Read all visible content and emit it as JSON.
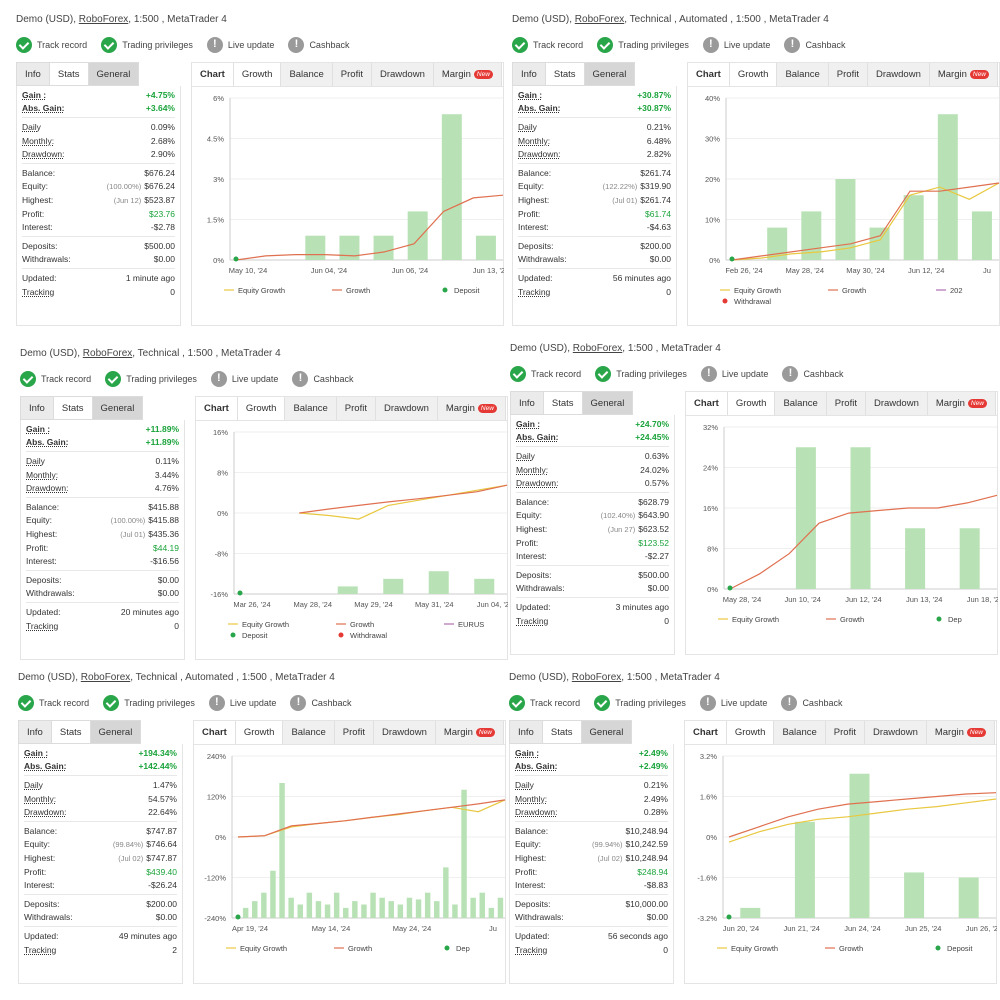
{
  "common": {
    "badges": [
      "Track record",
      "Trading privileges",
      "Live update",
      "Cashback"
    ],
    "info_tabs": [
      "Info",
      "Stats",
      "General"
    ],
    "chart_tabs": [
      "Chart",
      "Growth",
      "Balance",
      "Profit",
      "Drawdown",
      "Margin"
    ],
    "new_label": "New"
  },
  "panels": [
    {
      "title": {
        "prefix": "Demo (USD), ",
        "broker": "RoboForex",
        "suffix": ", 1:500 , MetaTrader 4"
      },
      "stats": [
        {
          "k": "Gain :",
          "v": "+4.75%"
        },
        {
          "k": "Abs. Gain:",
          "v": "+3.64%"
        },
        {
          "k": "Daily",
          "v": "0.09%"
        },
        {
          "k": "Monthly:",
          "v": "2.68%"
        },
        {
          "k": "Drawdown:",
          "v": "2.90%"
        },
        {
          "k": "Balance:",
          "v": "$676.24"
        },
        {
          "k": "Equity:",
          "sub": "(100.00%)",
          "v": "$676.24"
        },
        {
          "k": "Highest:",
          "sub": "(Jun 12)",
          "v": "$523.87"
        },
        {
          "k": "Profit:",
          "v": "$23.76"
        },
        {
          "k": "Interest:",
          "v": "-$2.78"
        },
        {
          "k": "Deposits:",
          "v": "$500.00"
        },
        {
          "k": "Withdrawals:",
          "v": "$0.00"
        },
        {
          "k": "Updated:",
          "v": "1 minute ago"
        },
        {
          "k": "Tracking",
          "v": "0"
        }
      ],
      "chart_data": {
        "type": "bar",
        "y_ticks": [
          "6%",
          "4.5%",
          "3%",
          "1.5%",
          "0%"
        ],
        "ylim": [
          0,
          6
        ],
        "x_ticks": [
          "May 10, '24",
          "Jun 04, '24",
          "Jun 06, '24",
          "Jun 13, '24"
        ],
        "bars": [
          0,
          0,
          0.9,
          0.9,
          0.9,
          1.8,
          5.4,
          0.9
        ],
        "growth": [
          0,
          0.15,
          0.2,
          0.2,
          0.15,
          0.3,
          0.6,
          1.8,
          2.3,
          2.4
        ],
        "equity_growth": [],
        "deposit_markers": [
          0
        ],
        "legend": [
          "Equity Growth",
          "Growth",
          "Deposit"
        ]
      }
    },
    {
      "title": {
        "prefix": "Demo (USD), ",
        "broker": "RoboForex",
        "suffix": ", Technical , Automated , 1:500 , MetaTrader 4"
      },
      "stats": [
        {
          "k": "Gain :",
          "v": "+30.87%"
        },
        {
          "k": "Abs. Gain:",
          "v": "+30.87%"
        },
        {
          "k": "Daily",
          "v": "0.21%"
        },
        {
          "k": "Monthly:",
          "v": "6.48%"
        },
        {
          "k": "Drawdown:",
          "v": "2.82%"
        },
        {
          "k": "Balance:",
          "v": "$261.74"
        },
        {
          "k": "Equity:",
          "sub": "(122.22%)",
          "v": "$319.90"
        },
        {
          "k": "Highest:",
          "sub": "(Jul 01)",
          "v": "$261.74"
        },
        {
          "k": "Profit:",
          "v": "$61.74"
        },
        {
          "k": "Interest:",
          "v": "-$4.63"
        },
        {
          "k": "Deposits:",
          "v": "$200.00"
        },
        {
          "k": "Withdrawals:",
          "v": "$0.00"
        },
        {
          "k": "Updated:",
          "v": "56 minutes ago"
        },
        {
          "k": "Tracking",
          "v": "0"
        }
      ],
      "chart_data": {
        "type": "bar",
        "y_ticks": [
          "40%",
          "30%",
          "20%",
          "10%",
          "0%"
        ],
        "ylim": [
          0,
          40
        ],
        "x_ticks": [
          "Feb 26, '24",
          "May 28, '24",
          "May 30, '24",
          "Jun 12, '24",
          "Ju"
        ],
        "bars": [
          0,
          8,
          12,
          20,
          8,
          16,
          36,
          12
        ],
        "growth": [
          0,
          1,
          2,
          3,
          4,
          6,
          17,
          17,
          18,
          19
        ],
        "equity_growth": [
          0,
          0.5,
          1.5,
          2,
          3,
          5,
          16,
          18,
          15,
          19
        ],
        "deposit_markers": [
          0
        ],
        "legend": [
          "Equity Growth",
          "Growth",
          "202",
          "Withdrawal"
        ]
      }
    },
    {
      "title": {
        "prefix": "Demo (USD), ",
        "broker": "RoboForex",
        "suffix": ", Technical , 1:500 , MetaTrader 4"
      },
      "stats": [
        {
          "k": "Gain :",
          "v": "+11.89%"
        },
        {
          "k": "Abs. Gain:",
          "v": "+11.89%"
        },
        {
          "k": "Daily",
          "v": "0.11%"
        },
        {
          "k": "Monthly:",
          "v": "3.44%"
        },
        {
          "k": "Drawdown:",
          "v": "4.76%"
        },
        {
          "k": "Balance:",
          "v": "$415.88"
        },
        {
          "k": "Equity:",
          "sub": "(100.00%)",
          "v": "$415.88"
        },
        {
          "k": "Highest:",
          "sub": "(Jul 01)",
          "v": "$435.36"
        },
        {
          "k": "Profit:",
          "v": "$44.19"
        },
        {
          "k": "Interest:",
          "v": "-$16.56"
        },
        {
          "k": "Deposits:",
          "v": "$0.00"
        },
        {
          "k": "Withdrawals:",
          "v": "$0.00"
        },
        {
          "k": "Updated:",
          "v": "20 minutes ago"
        },
        {
          "k": "Tracking",
          "v": "0"
        }
      ],
      "chart_data": {
        "type": "bar",
        "y_ticks": [
          "16%",
          "8%",
          "0%",
          "-8%",
          "-16%"
        ],
        "ylim": [
          -16,
          16
        ],
        "baseline": -16,
        "x_ticks": [
          "Mar 26, '24",
          "May 28, '24",
          "May 29, '24",
          "May 31, '24",
          "Jun 04, '24"
        ],
        "bars": [
          0,
          0,
          1.5,
          3,
          4.5,
          3
        ],
        "growth": [
          null,
          null,
          0,
          0.8,
          1.5,
          2.2,
          2.8,
          3.5,
          4.2,
          5.5
        ],
        "equity_growth": [
          null,
          null,
          0,
          -0.5,
          -1.2,
          1.5,
          2.5,
          3.5,
          4.5,
          5.5
        ],
        "deposit_markers": [
          0
        ],
        "legend": [
          "Equity Growth",
          "Growth",
          "EURUS",
          "Deposit",
          "Withdrawal"
        ]
      }
    },
    {
      "title": {
        "prefix": "Demo (USD), ",
        "broker": "RoboForex",
        "suffix": ", 1:500 , MetaTrader 4"
      },
      "stats": [
        {
          "k": "Gain :",
          "v": "+24.70%"
        },
        {
          "k": "Abs. Gain:",
          "v": "+24.45%"
        },
        {
          "k": "Daily",
          "v": "0.63%"
        },
        {
          "k": "Monthly:",
          "v": "24.02%"
        },
        {
          "k": "Drawdown:",
          "v": "0.57%"
        },
        {
          "k": "Balance:",
          "v": "$628.79"
        },
        {
          "k": "Equity:",
          "sub": "(102.40%)",
          "v": "$643.90"
        },
        {
          "k": "Highest:",
          "sub": "(Jun 27)",
          "v": "$623.52"
        },
        {
          "k": "Profit:",
          "v": "$123.52"
        },
        {
          "k": "Interest:",
          "v": "-$2.27"
        },
        {
          "k": "Deposits:",
          "v": "$500.00"
        },
        {
          "k": "Withdrawals:",
          "v": "$0.00"
        },
        {
          "k": "Updated:",
          "v": "3 minutes ago"
        },
        {
          "k": "Tracking",
          "v": "0"
        }
      ],
      "chart_data": {
        "type": "bar",
        "y_ticks": [
          "32%",
          "24%",
          "16%",
          "8%",
          "0%"
        ],
        "ylim": [
          0,
          32
        ],
        "x_ticks": [
          "May 28, '24",
          "Jun 10, '24",
          "Jun 12, '24",
          "Jun 13, '24",
          "Jun 18, '24"
        ],
        "bars": [
          0,
          28,
          28,
          12,
          12
        ],
        "growth": [
          0,
          3,
          7,
          13,
          15,
          15.5,
          16,
          16,
          17,
          18.5
        ],
        "equity_growth": [],
        "deposit_markers": [
          0
        ],
        "legend": [
          "Equity Growth",
          "Growth",
          "Dep"
        ]
      }
    },
    {
      "title": {
        "prefix": "Demo (USD), ",
        "broker": "RoboForex",
        "suffix": ", Technical , Automated , 1:500 , MetaTrader 4"
      },
      "stats": [
        {
          "k": "Gain :",
          "v": "+194.34%"
        },
        {
          "k": "Abs. Gain:",
          "v": "+142.44%"
        },
        {
          "k": "Daily",
          "v": "1.47%"
        },
        {
          "k": "Monthly:",
          "v": "54.57%"
        },
        {
          "k": "Drawdown:",
          "v": "22.64%"
        },
        {
          "k": "Balance:",
          "v": "$747.87"
        },
        {
          "k": "Equity:",
          "sub": "(99.84%)",
          "v": "$746.64"
        },
        {
          "k": "Highest:",
          "sub": "(Jul 02)",
          "v": "$747.87"
        },
        {
          "k": "Profit:",
          "v": "$439.40"
        },
        {
          "k": "Interest:",
          "v": "-$26.24"
        },
        {
          "k": "Deposits:",
          "v": "$200.00"
        },
        {
          "k": "Withdrawals:",
          "v": "$0.00"
        },
        {
          "k": "Updated:",
          "v": "49 minutes ago"
        },
        {
          "k": "Tracking",
          "v": "2"
        }
      ],
      "chart_data": {
        "type": "bar",
        "y_ticks": [
          "240%",
          "120%",
          "0%",
          "-120%",
          "-240%"
        ],
        "ylim": [
          -240,
          240
        ],
        "baseline": -240,
        "x_ticks": [
          "Apr 19, '24",
          "May 14, '24",
          "May 24, '24",
          "Ju"
        ],
        "bars": [
          0,
          30,
          50,
          75,
          140,
          400,
          60,
          40,
          75,
          50,
          40,
          75,
          30,
          50,
          40,
          75,
          60,
          50,
          40,
          60,
          55,
          75,
          50,
          150,
          40,
          380,
          60,
          75,
          30,
          60
        ],
        "growth": [
          0,
          4,
          33,
          40,
          48,
          58,
          68,
          78,
          88,
          98,
          110
        ],
        "equity_growth": [
          0,
          4,
          30,
          40,
          48,
          58,
          66,
          78,
          88,
          75,
          110
        ],
        "deposit_markers": [
          0
        ],
        "legend": [
          "Equity Growth",
          "Growth",
          "Dep"
        ]
      }
    },
    {
      "title": {
        "prefix": "Demo (USD), ",
        "broker": "RoboForex",
        "suffix": ", 1:500 , MetaTrader 4"
      },
      "stats": [
        {
          "k": "Gain :",
          "v": "+2.49%"
        },
        {
          "k": "Abs. Gain:",
          "v": "+2.49%"
        },
        {
          "k": "Daily",
          "v": "0.21%"
        },
        {
          "k": "Monthly:",
          "v": "2.49%"
        },
        {
          "k": "Drawdown:",
          "v": "0.28%"
        },
        {
          "k": "Balance:",
          "v": "$10,248.94"
        },
        {
          "k": "Equity:",
          "sub": "(99.94%)",
          "v": "$10,242.59"
        },
        {
          "k": "Highest:",
          "sub": "(Jul 02)",
          "v": "$10,248.94"
        },
        {
          "k": "Profit:",
          "v": "$248.94"
        },
        {
          "k": "Interest:",
          "v": "-$8.83"
        },
        {
          "k": "Deposits:",
          "v": "$10,000.00"
        },
        {
          "k": "Withdrawals:",
          "v": "$0.00"
        },
        {
          "k": "Updated:",
          "v": "56 seconds ago"
        },
        {
          "k": "Tracking",
          "v": "0"
        }
      ],
      "chart_data": {
        "type": "bar",
        "y_ticks": [
          "3.2%",
          "1.6%",
          "0%",
          "-1.6%",
          "-3.2%"
        ],
        "ylim": [
          -3.2,
          3.2
        ],
        "baseline": -3.2,
        "x_ticks": [
          "Jun 20, '24",
          "Jun 21, '24",
          "Jun 24, '24",
          "Jun 25, '24",
          "Jun 26, '24"
        ],
        "bars": [
          0.4,
          3.8,
          5.7,
          1.8,
          1.6
        ],
        "growth": [
          0,
          0.4,
          0.8,
          1.1,
          1.3,
          1.4,
          1.5,
          1.6,
          1.7,
          1.75
        ],
        "equity_growth": [
          -0.2,
          0.2,
          0.5,
          0.7,
          0.8,
          0.95,
          1.1,
          1.2,
          1.35,
          1.5
        ],
        "deposit_markers": [
          0
        ],
        "legend": [
          "Equity Growth",
          "Growth",
          "Deposit"
        ]
      }
    }
  ],
  "colors": {
    "green": "#1aa33a",
    "bar": "#b8e2b5",
    "growth": "#e07050",
    "equity": "#e8c840",
    "deposit": "#2aa64a",
    "withdrawal": "#e53935",
    "purple": "#b070b0"
  }
}
